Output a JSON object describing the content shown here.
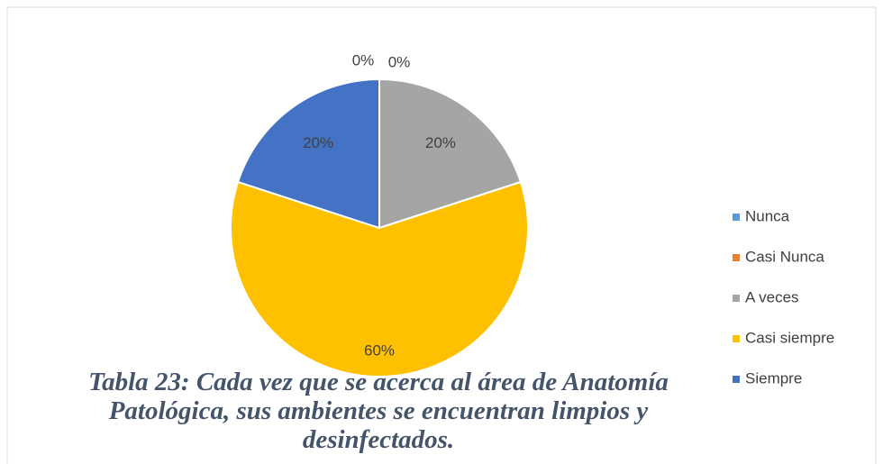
{
  "chart_data": {
    "type": "pie",
    "title": "Tabla 23: Cada vez que se acerca al área de Anatomía Patológica, sus ambientes se encuentran limpios y desinfectados.",
    "categories": [
      "Nunca",
      "Casi Nunca",
      "A veces",
      "Casi siempre",
      "Siempre"
    ],
    "values": [
      0,
      0,
      20,
      60,
      20
    ],
    "value_labels": [
      "0%",
      "0%",
      "20%",
      "60%",
      "20%"
    ],
    "colors": [
      "#5b9bd5",
      "#ed7d31",
      "#a5a5a5",
      "#ffc000",
      "#4472c4"
    ],
    "legend": "right"
  }
}
